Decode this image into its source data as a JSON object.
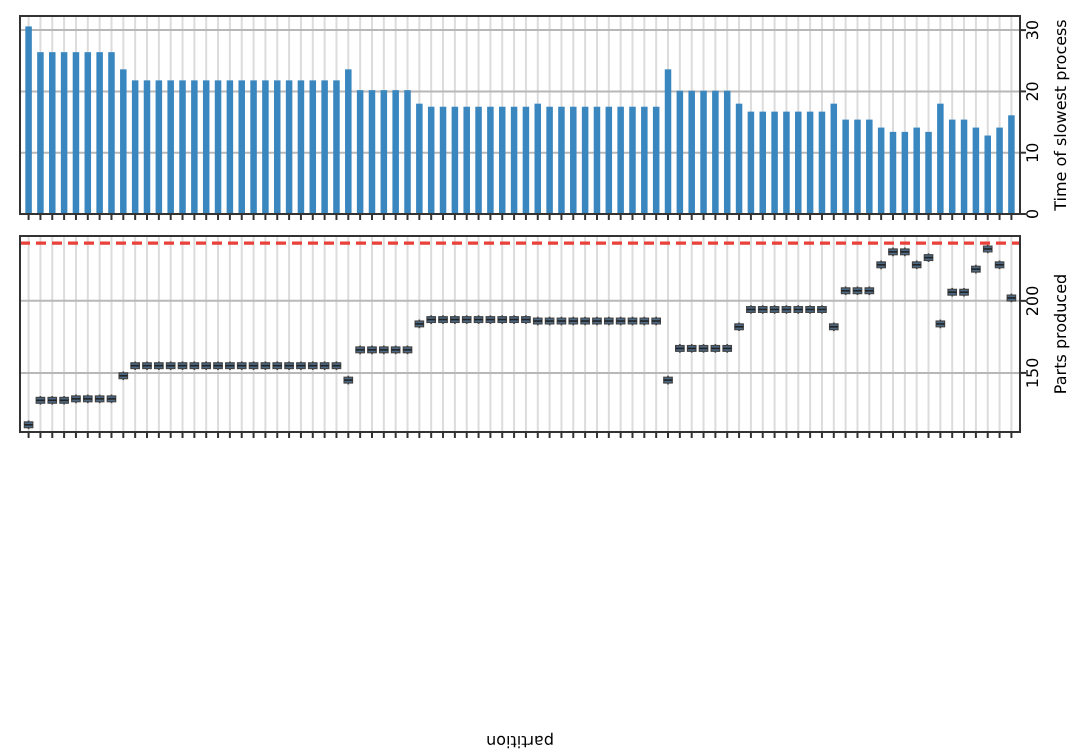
{
  "chart_data": [
    {
      "type": "bar",
      "ylabel": "Time of slowest process",
      "color": "#3a87c0",
      "categories": [
        null,
        null,
        null,
        null,
        null,
        null,
        null,
        null,
        null,
        null,
        null,
        null,
        null,
        null,
        null,
        null,
        null,
        null,
        null,
        null,
        null,
        null,
        null,
        null,
        null,
        null,
        null,
        null,
        null,
        null,
        null,
        null,
        null,
        null,
        null,
        null,
        null,
        null,
        null,
        null,
        null,
        null,
        null,
        null,
        null,
        null,
        null,
        null,
        null,
        null,
        null,
        null,
        null,
        null,
        null,
        null,
        null,
        null,
        null,
        null,
        null,
        null,
        null,
        null,
        null,
        null,
        null,
        null,
        null,
        null,
        null,
        null,
        null,
        null,
        null,
        null,
        null,
        null,
        null,
        null,
        null,
        null,
        null,
        null
      ],
      "values": [
        30.6,
        26.4,
        26.4,
        26.4,
        26.4,
        26.4,
        26.4,
        26.4,
        23.6,
        21.8,
        21.8,
        21.8,
        21.8,
        21.8,
        21.8,
        21.8,
        21.8,
        21.8,
        21.8,
        21.8,
        21.8,
        21.8,
        21.8,
        21.8,
        21.8,
        21.8,
        21.8,
        23.6,
        20.2,
        20.2,
        20.2,
        20.2,
        20.2,
        18,
        17.5,
        17.5,
        17.5,
        17.5,
        17.5,
        17.5,
        17.5,
        17.5,
        17.5,
        18,
        17.5,
        17.5,
        17.5,
        17.5,
        17.5,
        17.5,
        17.5,
        17.5,
        17.5,
        17.5,
        23.6,
        20.1,
        20.1,
        20.1,
        20.1,
        20.1,
        18,
        16.7,
        16.7,
        16.7,
        16.7,
        16.7,
        16.7,
        16.7,
        18,
        15.4,
        15.4,
        15.4,
        14.1,
        13.4,
        13.4,
        14.1,
        13.4,
        18,
        15.4,
        15.4,
        14.1,
        12.8,
        14.1,
        16.1
      ],
      "ylim": [
        0,
        32.3
      ],
      "yticks": [
        0,
        10,
        20,
        30
      ],
      "grid": true,
      "tick_labels": "y"
    },
    {
      "type": "box",
      "ylabel": "Parts produced",
      "xlabel": "partition",
      "color": "#4b6a88",
      "categories": [
        null,
        null,
        null,
        null,
        null,
        null,
        null,
        null,
        null,
        null,
        null,
        null,
        null,
        null,
        null,
        null,
        null,
        null,
        null,
        null,
        null,
        null,
        null,
        null,
        null,
        null,
        null,
        null,
        null,
        null,
        null,
        null,
        null,
        null,
        null,
        null,
        null,
        null,
        null,
        null,
        null,
        null,
        null,
        null,
        null,
        null,
        null,
        null,
        null,
        null,
        null,
        null,
        null,
        null,
        null,
        null,
        null,
        null,
        null,
        null,
        null,
        null,
        null,
        null,
        null,
        null,
        null,
        null,
        null,
        null,
        null,
        null,
        null,
        null,
        null,
        null,
        null,
        null,
        null,
        null,
        null,
        null,
        null,
        null
      ],
      "boxes": [
        {
          "low": 111,
          "q1": 112,
          "median": 114,
          "q3": 116,
          "high": 117
        },
        {
          "low": 128,
          "q1": 129,
          "median": 131,
          "q3": 133,
          "high": 134
        },
        {
          "low": 128,
          "q1": 129,
          "median": 131,
          "q3": 133,
          "high": 134
        },
        {
          "low": 128,
          "q1": 129,
          "median": 131,
          "q3": 133,
          "high": 134
        },
        {
          "low": 129,
          "q1": 130,
          "median": 132,
          "q3": 134,
          "high": 135
        },
        {
          "low": 129,
          "q1": 130,
          "median": 132,
          "q3": 134,
          "high": 135
        },
        {
          "low": 129,
          "q1": 130,
          "median": 132,
          "q3": 134,
          "high": 135
        },
        {
          "low": 129,
          "q1": 130,
          "median": 132,
          "q3": 134,
          "high": 135
        },
        {
          "low": 145,
          "q1": 146,
          "median": 148,
          "q3": 150,
          "high": 151
        },
        {
          "low": 152,
          "q1": 153,
          "median": 155,
          "q3": 157,
          "high": 158
        },
        {
          "low": 152,
          "q1": 153,
          "median": 155,
          "q3": 157,
          "high": 158
        },
        {
          "low": 152,
          "q1": 153,
          "median": 155,
          "q3": 157,
          "high": 158
        },
        {
          "low": 152,
          "q1": 153,
          "median": 155,
          "q3": 157,
          "high": 158
        },
        {
          "low": 152,
          "q1": 153,
          "median": 155,
          "q3": 157,
          "high": 158
        },
        {
          "low": 152,
          "q1": 153,
          "median": 155,
          "q3": 157,
          "high": 158
        },
        {
          "low": 152,
          "q1": 153,
          "median": 155,
          "q3": 157,
          "high": 158
        },
        {
          "low": 152,
          "q1": 153,
          "median": 155,
          "q3": 157,
          "high": 158
        },
        {
          "low": 152,
          "q1": 153,
          "median": 155,
          "q3": 157,
          "high": 158
        },
        {
          "low": 152,
          "q1": 153,
          "median": 155,
          "q3": 157,
          "high": 158
        },
        {
          "low": 152,
          "q1": 153,
          "median": 155,
          "q3": 157,
          "high": 158
        },
        {
          "low": 152,
          "q1": 153,
          "median": 155,
          "q3": 157,
          "high": 158
        },
        {
          "low": 152,
          "q1": 153,
          "median": 155,
          "q3": 157,
          "high": 158
        },
        {
          "low": 152,
          "q1": 153,
          "median": 155,
          "q3": 157,
          "high": 158
        },
        {
          "low": 152,
          "q1": 153,
          "median": 155,
          "q3": 157,
          "high": 158
        },
        {
          "low": 152,
          "q1": 153,
          "median": 155,
          "q3": 157,
          "high": 158
        },
        {
          "low": 152,
          "q1": 153,
          "median": 155,
          "q3": 157,
          "high": 158
        },
        {
          "low": 152,
          "q1": 153,
          "median": 155,
          "q3": 157,
          "high": 158
        },
        {
          "low": 142,
          "q1": 143,
          "median": 145,
          "q3": 147,
          "high": 148
        },
        {
          "low": 163,
          "q1": 164,
          "median": 166,
          "q3": 168,
          "high": 169
        },
        {
          "low": 163,
          "q1": 164,
          "median": 166,
          "q3": 168,
          "high": 169
        },
        {
          "low": 163,
          "q1": 164,
          "median": 166,
          "q3": 168,
          "high": 169
        },
        {
          "low": 163,
          "q1": 164,
          "median": 166,
          "q3": 168,
          "high": 169
        },
        {
          "low": 163,
          "q1": 164,
          "median": 166,
          "q3": 168,
          "high": 169
        },
        {
          "low": 181,
          "q1": 182,
          "median": 184,
          "q3": 186,
          "high": 187
        },
        {
          "low": 184,
          "q1": 185,
          "median": 187,
          "q3": 189,
          "high": 190
        },
        {
          "low": 184,
          "q1": 185,
          "median": 187,
          "q3": 189,
          "high": 190
        },
        {
          "low": 184,
          "q1": 185,
          "median": 187,
          "q3": 189,
          "high": 190
        },
        {
          "low": 184,
          "q1": 185,
          "median": 187,
          "q3": 189,
          "high": 190
        },
        {
          "low": 184,
          "q1": 185,
          "median": 187,
          "q3": 189,
          "high": 190
        },
        {
          "low": 184,
          "q1": 185,
          "median": 187,
          "q3": 189,
          "high": 190
        },
        {
          "low": 184,
          "q1": 185,
          "median": 187,
          "q3": 189,
          "high": 190
        },
        {
          "low": 184,
          "q1": 185,
          "median": 187,
          "q3": 189,
          "high": 190
        },
        {
          "low": 184,
          "q1": 185,
          "median": 187,
          "q3": 189,
          "high": 190
        },
        {
          "low": 183,
          "q1": 184,
          "median": 186,
          "q3": 188,
          "high": 189
        },
        {
          "low": 183,
          "q1": 184,
          "median": 186,
          "q3": 188,
          "high": 189
        },
        {
          "low": 183,
          "q1": 184,
          "median": 186,
          "q3": 188,
          "high": 189
        },
        {
          "low": 183,
          "q1": 184,
          "median": 186,
          "q3": 188,
          "high": 189
        },
        {
          "low": 183,
          "q1": 184,
          "median": 186,
          "q3": 188,
          "high": 189
        },
        {
          "low": 183,
          "q1": 184,
          "median": 186,
          "q3": 188,
          "high": 189
        },
        {
          "low": 183,
          "q1": 184,
          "median": 186,
          "q3": 188,
          "high": 189
        },
        {
          "low": 183,
          "q1": 184,
          "median": 186,
          "q3": 188,
          "high": 189
        },
        {
          "low": 183,
          "q1": 184,
          "median": 186,
          "q3": 188,
          "high": 189
        },
        {
          "low": 183,
          "q1": 184,
          "median": 186,
          "q3": 188,
          "high": 189
        },
        {
          "low": 183,
          "q1": 184,
          "median": 186,
          "q3": 188,
          "high": 189
        },
        {
          "low": 142,
          "q1": 143,
          "median": 145,
          "q3": 147,
          "high": 148
        },
        {
          "low": 164,
          "q1": 165,
          "median": 167,
          "q3": 169,
          "high": 170
        },
        {
          "low": 164,
          "q1": 165,
          "median": 167,
          "q3": 169,
          "high": 170
        },
        {
          "low": 164,
          "q1": 165,
          "median": 167,
          "q3": 169,
          "high": 170
        },
        {
          "low": 164,
          "q1": 165,
          "median": 167,
          "q3": 169,
          "high": 170
        },
        {
          "low": 164,
          "q1": 165,
          "median": 167,
          "q3": 169,
          "high": 170
        },
        {
          "low": 179,
          "q1": 180,
          "median": 182,
          "q3": 184,
          "high": 185
        },
        {
          "low": 191,
          "q1": 192,
          "median": 194,
          "q3": 196,
          "high": 197
        },
        {
          "low": 191,
          "q1": 192,
          "median": 194,
          "q3": 196,
          "high": 197
        },
        {
          "low": 191,
          "q1": 192,
          "median": 194,
          "q3": 196,
          "high": 197
        },
        {
          "low": 191,
          "q1": 192,
          "median": 194,
          "q3": 196,
          "high": 197
        },
        {
          "low": 191,
          "q1": 192,
          "median": 194,
          "q3": 196,
          "high": 197
        },
        {
          "low": 191,
          "q1": 192,
          "median": 194,
          "q3": 196,
          "high": 197
        },
        {
          "low": 191,
          "q1": 192,
          "median": 194,
          "q3": 196,
          "high": 197
        },
        {
          "low": 179,
          "q1": 180,
          "median": 182,
          "q3": 184,
          "high": 185
        },
        {
          "low": 204,
          "q1": 205,
          "median": 207,
          "q3": 209,
          "high": 210
        },
        {
          "low": 204,
          "q1": 205,
          "median": 207,
          "q3": 209,
          "high": 210
        },
        {
          "low": 204,
          "q1": 205,
          "median": 207,
          "q3": 209,
          "high": 210
        },
        {
          "low": 222,
          "q1": 223,
          "median": 225,
          "q3": 227,
          "high": 228
        },
        {
          "low": 231,
          "q1": 232,
          "median": 234,
          "q3": 236,
          "high": 237
        },
        {
          "low": 231,
          "q1": 232,
          "median": 234,
          "q3": 236,
          "high": 237
        },
        {
          "low": 222,
          "q1": 223,
          "median": 225,
          "q3": 227,
          "high": 228
        },
        {
          "low": 227,
          "q1": 228,
          "median": 230,
          "q3": 232,
          "high": 233
        },
        {
          "low": 181,
          "q1": 182,
          "median": 184,
          "q3": 186,
          "high": 187
        },
        {
          "low": 203,
          "q1": 204,
          "median": 206,
          "q3": 208,
          "high": 209
        },
        {
          "low": 203,
          "q1": 204,
          "median": 206,
          "q3": 208,
          "high": 209
        },
        {
          "low": 219,
          "q1": 220,
          "median": 222,
          "q3": 224,
          "high": 225
        },
        {
          "low": 233,
          "q1": 234,
          "median": 236,
          "q3": 238,
          "high": 239
        },
        {
          "low": 222,
          "q1": 223,
          "median": 225,
          "q3": 227,
          "high": 228
        },
        {
          "low": 199,
          "q1": 200,
          "median": 202,
          "q3": 204,
          "high": 205
        }
      ],
      "ylim": [
        109,
        245
      ],
      "yticks": [
        150,
        200
      ],
      "grid": true,
      "tick_labels": "y",
      "ref_lines": [
        {
          "axis": "y",
          "value": 240,
          "color": "#e8403a",
          "line_style": "dashed"
        }
      ]
    }
  ]
}
